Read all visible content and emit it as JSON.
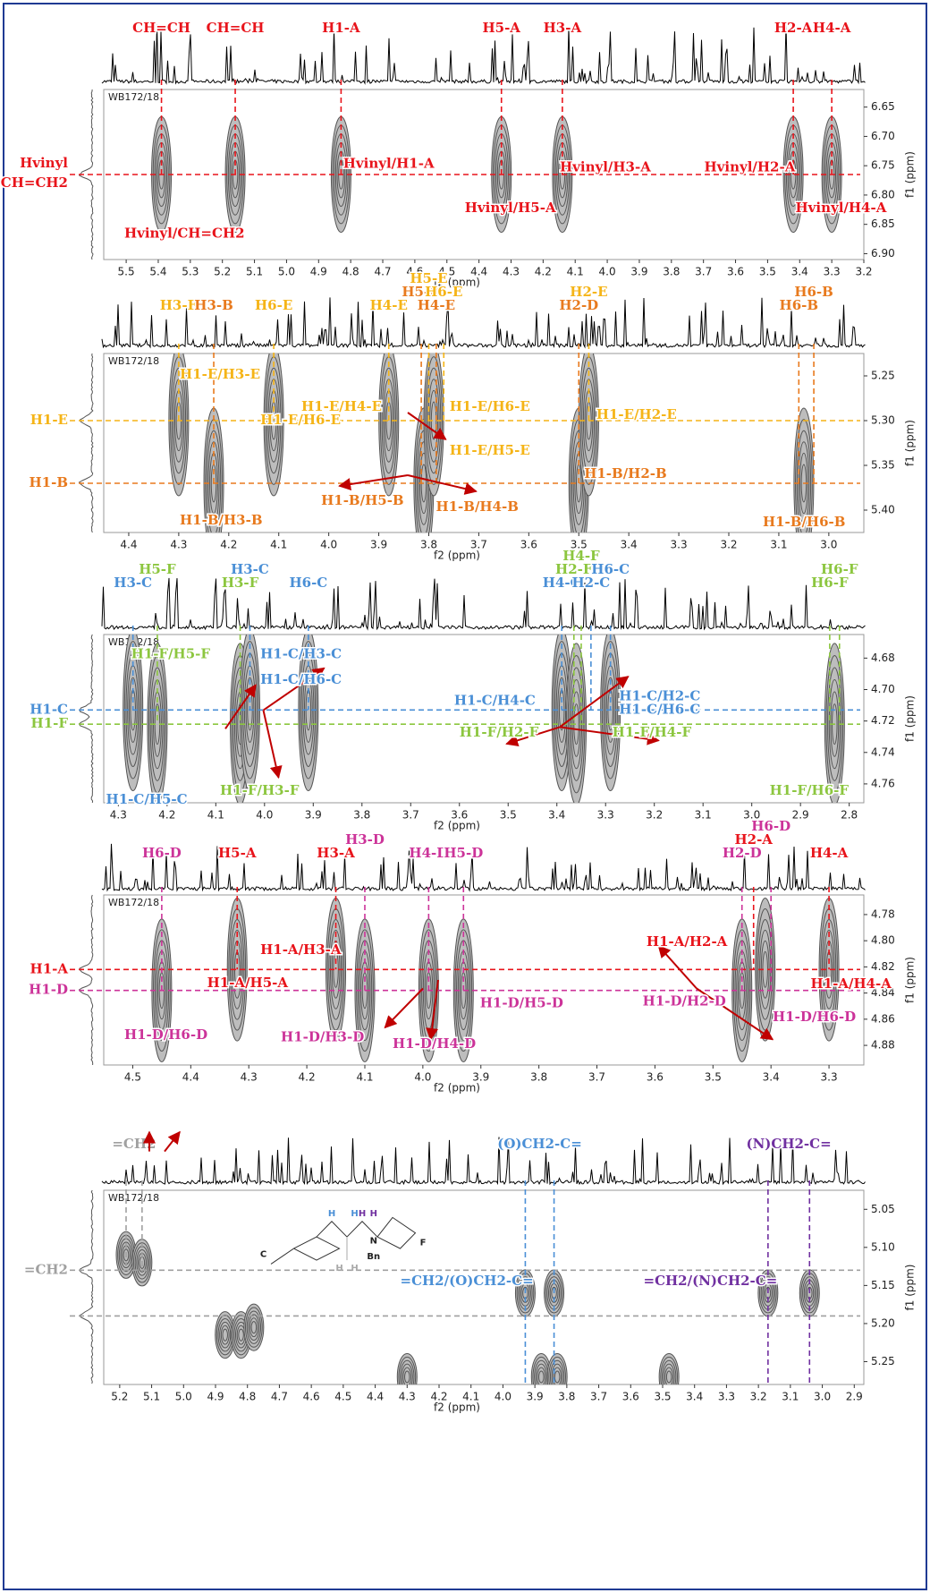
{
  "chart_data": [
    {
      "type": "contour",
      "sample": "WB172/18",
      "x_label": "f2 (ppm)",
      "y_label": "f1 (ppm)",
      "x_reversed": true,
      "y_reversed": true,
      "xlim": [
        3.2,
        5.57
      ],
      "xticks": [
        5.5,
        5.4,
        5.3,
        5.2,
        5.1,
        {
          "value": 5,
          "label": "5.0"
        },
        4.9,
        4.8,
        4.7,
        4.6,
        4.5,
        4.4,
        4.3,
        4.2,
        4.1,
        {
          "value": 4,
          "label": "4.0"
        },
        3.9,
        3.8,
        3.7,
        3.6,
        3.5,
        3.4,
        3.3,
        3.2
      ],
      "ylim": [
        6.62,
        6.91
      ],
      "yticks": [
        6.65,
        {
          "value": 6.7,
          "label": "6.70"
        },
        6.75,
        {
          "value": 6.8,
          "label": "6.80"
        },
        6.85,
        {
          "value": 6.9,
          "label": "6.90"
        }
      ],
      "x_markers": [
        {
          "label": "CH=CH",
          "values": [
            5.39
          ],
          "color": "#e8141b"
        },
        {
          "label": "CH=CH",
          "values": [
            5.16
          ],
          "color": "#e8141b"
        },
        {
          "label": "H1-A",
          "values": [
            4.83
          ],
          "color": "#e8141b"
        },
        {
          "label": "H5-A",
          "values": [
            4.33
          ],
          "color": "#e8141b"
        },
        {
          "label": "H3-A",
          "values": [
            4.14
          ],
          "color": "#e8141b"
        },
        {
          "label": "H2-A",
          "values": [
            3.42
          ],
          "color": "#e8141b"
        },
        {
          "label": "H4-A",
          "values": [
            3.3
          ],
          "color": "#e8141b"
        }
      ],
      "y_markers": [
        {
          "label": "Hvinyl",
          "sublabel": "CH=CH2",
          "values": [
            6.765
          ],
          "color": "#e8141b"
        }
      ],
      "peaks": {
        "x": [
          5.39,
          5.16,
          4.83,
          4.33,
          4.14,
          3.42,
          3.3
        ],
        "y": [
          6.765,
          6.765,
          6.765,
          6.765,
          6.765,
          6.765,
          6.765
        ]
      },
      "annotations": [
        {
          "text": "Hvinyl/H1-A",
          "color": "#e8141b"
        },
        {
          "text": "Hvinyl/H3-A",
          "color": "#e8141b"
        },
        {
          "text": "Hvinyl/H2-A",
          "color": "#e8141b"
        },
        {
          "text": "Hvinyl/H5-A",
          "color": "#e8141b"
        },
        {
          "text": "Hvinyl/H4-A",
          "color": "#e8141b"
        },
        {
          "text": "Hvinyl/CH=CH2",
          "color": "#e8141b"
        }
      ]
    },
    {
      "type": "contour",
      "sample": "WB172/18",
      "x_label": "f2 (ppm)",
      "y_label": "f1 (ppm)",
      "x_reversed": true,
      "y_reversed": true,
      "xlim": [
        2.93,
        4.45
      ],
      "xticks": [
        4.4,
        4.3,
        4.2,
        4.1,
        {
          "value": 4,
          "label": "4.0"
        },
        3.9,
        3.8,
        3.7,
        3.6,
        3.5,
        3.4,
        3.3,
        3.2,
        3.1,
        {
          "value": 3,
          "label": "3.0"
        }
      ],
      "ylim": [
        5.225,
        5.425
      ],
      "yticks": [
        5.25,
        {
          "value": 5.3,
          "label": "5.30"
        },
        5.35,
        {
          "value": 5.4,
          "label": "5.40"
        }
      ],
      "x_markers": [
        {
          "label": "H3-E",
          "values": [
            4.3
          ],
          "color": "#f5b417"
        },
        {
          "label": "H3-B",
          "values": [
            4.23
          ],
          "color": "#e87a1e"
        },
        {
          "label": "H6-E",
          "values": [
            4.11
          ],
          "color": "#f5b417"
        },
        {
          "label": "H4-E",
          "values": [
            3.88
          ],
          "color": "#f5b417"
        },
        {
          "label": "H5-B",
          "values": [
            3.815
          ],
          "color": "#e87a1e"
        },
        {
          "label": "H5-E",
          "values": [
            3.8
          ],
          "color": "#f5b417"
        },
        {
          "label": "H4-E",
          "values": [
            3.785
          ],
          "color": "#e87a1e"
        },
        {
          "label": "H6-E",
          "values": [
            3.77
          ],
          "color": "#f5b417"
        },
        {
          "label": "H2-D",
          "values": [
            3.5
          ],
          "color": "#e87a1e"
        },
        {
          "label": "H2-E",
          "values": [
            3.48
          ],
          "color": "#f5b417"
        },
        {
          "label": "H6-B",
          "values": [
            3.06
          ],
          "color": "#e87a1e"
        },
        {
          "label": "H6-B",
          "values": [
            3.03
          ],
          "color": "#e87a1e"
        }
      ],
      "y_markers": [
        {
          "label": "H1-E",
          "values": [
            5.3
          ],
          "color": "#f5b417"
        },
        {
          "label": "H1-B",
          "values": [
            5.37
          ],
          "color": "#e87a1e"
        }
      ],
      "peaks": {
        "x": [
          4.3,
          4.23,
          4.11,
          3.88,
          3.81,
          3.79,
          3.5,
          3.48,
          3.05
        ],
        "y": [
          5.3,
          5.37,
          5.3,
          5.3,
          5.37,
          5.3,
          5.37,
          5.3,
          5.37
        ]
      },
      "annotations": [
        {
          "text": "H1-E/H3-E",
          "color": "#f5b417"
        },
        {
          "text": "H1-E/H4-E",
          "color": "#f5b417"
        },
        {
          "text": "H1-E/H6-E",
          "color": "#f5b417"
        },
        {
          "text": "H1-E/H6-E",
          "color": "#f5b417"
        },
        {
          "text": "H1-E/H2-E",
          "color": "#f5b417"
        },
        {
          "text": "H1-E/H5-E",
          "color": "#f5b417"
        },
        {
          "text": "H1-B/H2-B",
          "color": "#e87a1e"
        },
        {
          "text": "H1-B/H5-B",
          "color": "#e87a1e"
        },
        {
          "text": "H1-B/H4-B",
          "color": "#e87a1e"
        },
        {
          "text": "H1-B/H3-B",
          "color": "#e87a1e"
        },
        {
          "text": "H1-B/H6-B",
          "color": "#e87a1e"
        }
      ]
    },
    {
      "type": "contour",
      "sample": "WB172/18",
      "x_label": "f2 (ppm)",
      "y_label": "f1 (ppm)",
      "x_reversed": true,
      "y_reversed": true,
      "xlim": [
        2.77,
        4.33
      ],
      "xticks": [
        4.3,
        4.2,
        4.1,
        {
          "value": 4,
          "label": "4.0"
        },
        3.9,
        3.8,
        3.7,
        3.6,
        3.5,
        3.4,
        3.3,
        3.2,
        3.1,
        {
          "value": 3,
          "label": "3.0"
        },
        2.9,
        2.8
      ],
      "ylim": [
        4.665,
        4.772
      ],
      "yticks": [
        4.68,
        {
          "value": 4.7,
          "label": "4.70"
        },
        4.72,
        4.74,
        4.76
      ],
      "x_markers": [
        {
          "label": "H3-C",
          "values": [
            4.27
          ],
          "color": "#4a8fd6"
        },
        {
          "label": "H5-F",
          "values": [
            4.22
          ],
          "color": "#8cc63f"
        },
        {
          "label": "H3-F",
          "values": [
            4.05
          ],
          "color": "#8cc63f"
        },
        {
          "label": "H3-C",
          "values": [
            4.03
          ],
          "color": "#4a8fd6"
        },
        {
          "label": "H6-C",
          "values": [
            3.91
          ],
          "color": "#4a8fd6"
        },
        {
          "label": "H4-C",
          "values": [
            3.39
          ],
          "color": "#4a8fd6"
        },
        {
          "label": "H2-F",
          "values": [
            3.365
          ],
          "color": "#8cc63f"
        },
        {
          "label": "H4-F",
          "values": [
            3.35
          ],
          "color": "#8cc63f"
        },
        {
          "label": "H2-C",
          "values": [
            3.33
          ],
          "color": "#4a8fd6"
        },
        {
          "label": "H6-C",
          "values": [
            3.29
          ],
          "color": "#4a8fd6"
        },
        {
          "label": "H6-F",
          "values": [
            2.84
          ],
          "color": "#8cc63f"
        },
        {
          "label": "H6-F",
          "values": [
            2.82
          ],
          "color": "#8cc63f"
        }
      ],
      "y_markers": [
        {
          "label": "H1-C",
          "values": [
            4.713
          ],
          "color": "#4a8fd6"
        },
        {
          "label": "H1-F",
          "values": [
            4.722
          ],
          "color": "#8cc63f"
        }
      ],
      "peaks": {
        "x": [
          4.27,
          4.22,
          4.05,
          4.03,
          3.91,
          3.39,
          3.36,
          3.29,
          2.83
        ],
        "y": [
          4.713,
          4.722,
          4.722,
          4.713,
          4.713,
          4.713,
          4.722,
          4.713,
          4.722
        ]
      },
      "annotations": [
        {
          "text": "H1-F/H5-F",
          "color": "#8cc63f"
        },
        {
          "text": "H1-C/H3-C",
          "color": "#4a8fd6"
        },
        {
          "text": "H1-C/H6-C",
          "color": "#4a8fd6"
        },
        {
          "text": "H1-C/H4-C",
          "color": "#4a8fd6"
        },
        {
          "text": "H1-C/H2-C",
          "color": "#4a8fd6"
        },
        {
          "text": "H1-C/H6-C",
          "color": "#4a8fd6"
        },
        {
          "text": "H1-F/H2-F",
          "color": "#8cc63f"
        },
        {
          "text": "H1-F/H4-F",
          "color": "#8cc63f"
        },
        {
          "text": "H1-F/H3-F",
          "color": "#8cc63f"
        },
        {
          "text": "H1-C/H5-C",
          "color": "#4a8fd6"
        },
        {
          "text": "H1-F/H6-F",
          "color": "#8cc63f"
        }
      ]
    },
    {
      "type": "contour",
      "sample": "WB172/18",
      "x_label": "f2 (ppm)",
      "y_label": "f1 (ppm)",
      "x_reversed": true,
      "y_reversed": true,
      "xlim": [
        3.24,
        4.55
      ],
      "xticks": [
        4.5,
        4.4,
        4.3,
        4.2,
        4.1,
        {
          "value": 4,
          "label": "4.0"
        },
        3.9,
        3.8,
        3.7,
        3.6,
        3.5,
        3.4,
        3.3
      ],
      "ylim": [
        4.765,
        4.895
      ],
      "yticks": [
        4.78,
        {
          "value": 4.8,
          "label": "4.80"
        },
        4.82,
        4.84,
        4.86,
        4.88
      ],
      "x_markers": [
        {
          "label": "H6-D",
          "values": [
            4.45
          ],
          "color": "#cc3399"
        },
        {
          "label": "H5-A",
          "values": [
            4.32
          ],
          "color": "#e8141b"
        },
        {
          "label": "H3-A",
          "values": [
            4.15
          ],
          "color": "#e8141b"
        },
        {
          "label": "H3-D",
          "values": [
            4.1
          ],
          "color": "#cc3399"
        },
        {
          "label": "H4-D",
          "values": [
            3.99
          ],
          "color": "#cc3399"
        },
        {
          "label": "H5-D",
          "values": [
            3.93
          ],
          "color": "#cc3399"
        },
        {
          "label": "H2-D",
          "values": [
            3.45
          ],
          "color": "#cc3399"
        },
        {
          "label": "H2-A",
          "values": [
            3.43
          ],
          "color": "#e8141b"
        },
        {
          "label": "H6-D",
          "values": [
            3.4
          ],
          "color": "#cc3399"
        },
        {
          "label": "H4-A",
          "values": [
            3.3
          ],
          "color": "#e8141b"
        }
      ],
      "y_markers": [
        {
          "label": "H1-A",
          "values": [
            4.822
          ],
          "color": "#e8141b"
        },
        {
          "label": "H1-D",
          "values": [
            4.838
          ],
          "color": "#cc3399"
        }
      ],
      "peaks": {
        "x": [
          4.45,
          4.32,
          4.15,
          4.1,
          3.99,
          3.93,
          3.45,
          3.41,
          3.3
        ],
        "y": [
          4.838,
          4.822,
          4.822,
          4.838,
          4.838,
          4.838,
          4.838,
          4.822,
          4.822
        ]
      },
      "annotations": [
        {
          "text": "H1-A/H3-A",
          "color": "#e8141b"
        },
        {
          "text": "H1-A/H5-A",
          "color": "#e8141b"
        },
        {
          "text": "H1-A/H2-A",
          "color": "#e8141b"
        },
        {
          "text": "H1-A/H4-A",
          "color": "#e8141b"
        },
        {
          "text": "H1-D/H6-D",
          "color": "#cc3399"
        },
        {
          "text": "H1-D/H3-D",
          "color": "#cc3399"
        },
        {
          "text": "H1-D/H4-D",
          "color": "#cc3399"
        },
        {
          "text": "H1-D/H5-D",
          "color": "#cc3399"
        },
        {
          "text": "H1-D/H2-D",
          "color": "#cc3399"
        },
        {
          "text": "H1-D/H6-D",
          "color": "#cc3399"
        }
      ]
    },
    {
      "type": "contour",
      "sample": "WB172/18",
      "x_label": "f2 (ppm)",
      "y_label": "f1 (ppm)",
      "x_reversed": true,
      "y_reversed": true,
      "xlim": [
        2.87,
        5.25
      ],
      "xticks": [
        5.2,
        5.1,
        {
          "value": 5,
          "label": "5.0"
        },
        4.9,
        4.8,
        4.7,
        4.6,
        4.5,
        4.4,
        4.3,
        4.2,
        4.1,
        {
          "value": 4,
          "label": "4.0"
        },
        3.9,
        3.8,
        3.7,
        3.6,
        3.5,
        3.4,
        3.3,
        3.2,
        3.1,
        {
          "value": 3,
          "label": "3.0"
        },
        2.9
      ],
      "ylim": [
        5.025,
        5.28
      ],
      "yticks": [
        5.05,
        {
          "value": 5.1,
          "label": "5.10"
        },
        5.15,
        {
          "value": 5.2,
          "label": "5.20"
        },
        5.25
      ],
      "x_markers": [
        {
          "label": "=CH2",
          "values": [
            5.18,
            5.13
          ],
          "color": "#a0a0a0"
        },
        {
          "label": "(O)CH2-C=",
          "values": [
            3.93,
            3.84
          ],
          "color": "#4a8fd6"
        },
        {
          "label": "(N)CH2-C=",
          "values": [
            3.17,
            3.04
          ],
          "color": "#7030a0"
        }
      ],
      "y_markers": [
        {
          "label": "=CH2",
          "values": [
            5.13,
            5.19
          ],
          "color": "#a0a0a0"
        }
      ],
      "peaks": {
        "x": [
          5.18,
          5.13,
          3.93,
          3.84,
          3.17,
          3.04,
          4.87,
          4.82,
          4.78,
          4.3,
          3.88,
          3.83,
          3.48
        ],
        "y": [
          5.11,
          5.12,
          5.16,
          5.16,
          5.16,
          5.16,
          5.215,
          5.215,
          5.205,
          5.27,
          5.27,
          5.27,
          5.27
        ]
      },
      "annotations": [
        {
          "text": "=CH2/(O)CH2-C=",
          "color": "#4a8fd6"
        },
        {
          "text": "=CH2/(N)CH2-C=",
          "color": "#7030a0"
        }
      ],
      "structure_labels": [
        "H",
        "H",
        "H",
        "H",
        "H",
        "H",
        "C",
        "F",
        "N",
        "Bn"
      ]
    }
  ]
}
